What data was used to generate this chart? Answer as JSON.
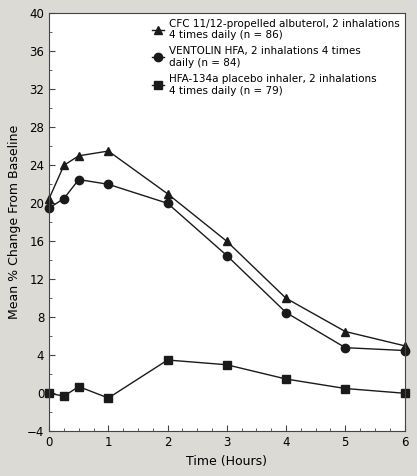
{
  "xlabel": "Time (Hours)",
  "ylabel": "Mean % Change From Baseline",
  "xlim": [
    0,
    6
  ],
  "ylim": [
    -4,
    40
  ],
  "yticks": [
    -4,
    0,
    4,
    8,
    12,
    16,
    20,
    24,
    28,
    32,
    36,
    40
  ],
  "xticks": [
    0,
    1,
    2,
    3,
    4,
    5,
    6
  ],
  "series": [
    {
      "label": "CFC 11/12-propelled albuterol, 2 inhalations\n4 times daily (n = 86)",
      "x": [
        0,
        0.25,
        0.5,
        1,
        2,
        3,
        4,
        5,
        6
      ],
      "y": [
        20.5,
        24.0,
        25.0,
        25.5,
        21.0,
        16.0,
        10.0,
        6.5,
        5.0
      ],
      "marker": "^",
      "color": "#1a1a1a",
      "linestyle": "-",
      "markersize": 6
    },
    {
      "label": "VENTOLIN HFA, 2 inhalations 4 times\ndaily (n = 84)",
      "x": [
        0,
        0.25,
        0.5,
        1,
        2,
        3,
        4,
        5,
        6
      ],
      "y": [
        19.5,
        20.5,
        22.5,
        22.0,
        20.0,
        14.5,
        8.5,
        4.8,
        4.5
      ],
      "marker": "o",
      "color": "#1a1a1a",
      "linestyle": "-",
      "markersize": 6
    },
    {
      "label": "HFA-134a placebo inhaler, 2 inhalations\n4 times daily (n = 79)",
      "x": [
        0,
        0.25,
        0.5,
        1,
        2,
        3,
        4,
        5,
        6
      ],
      "y": [
        0.0,
        -0.3,
        0.7,
        -0.5,
        3.5,
        3.0,
        1.5,
        0.5,
        0.0
      ],
      "marker": "s",
      "color": "#1a1a1a",
      "linestyle": "-",
      "markersize": 6
    }
  ],
  "background_color": "#dcdad5",
  "plot_bg_color": "#ffffff",
  "legend_fontsize": 7.5,
  "axis_fontsize": 9,
  "tick_fontsize": 8.5
}
